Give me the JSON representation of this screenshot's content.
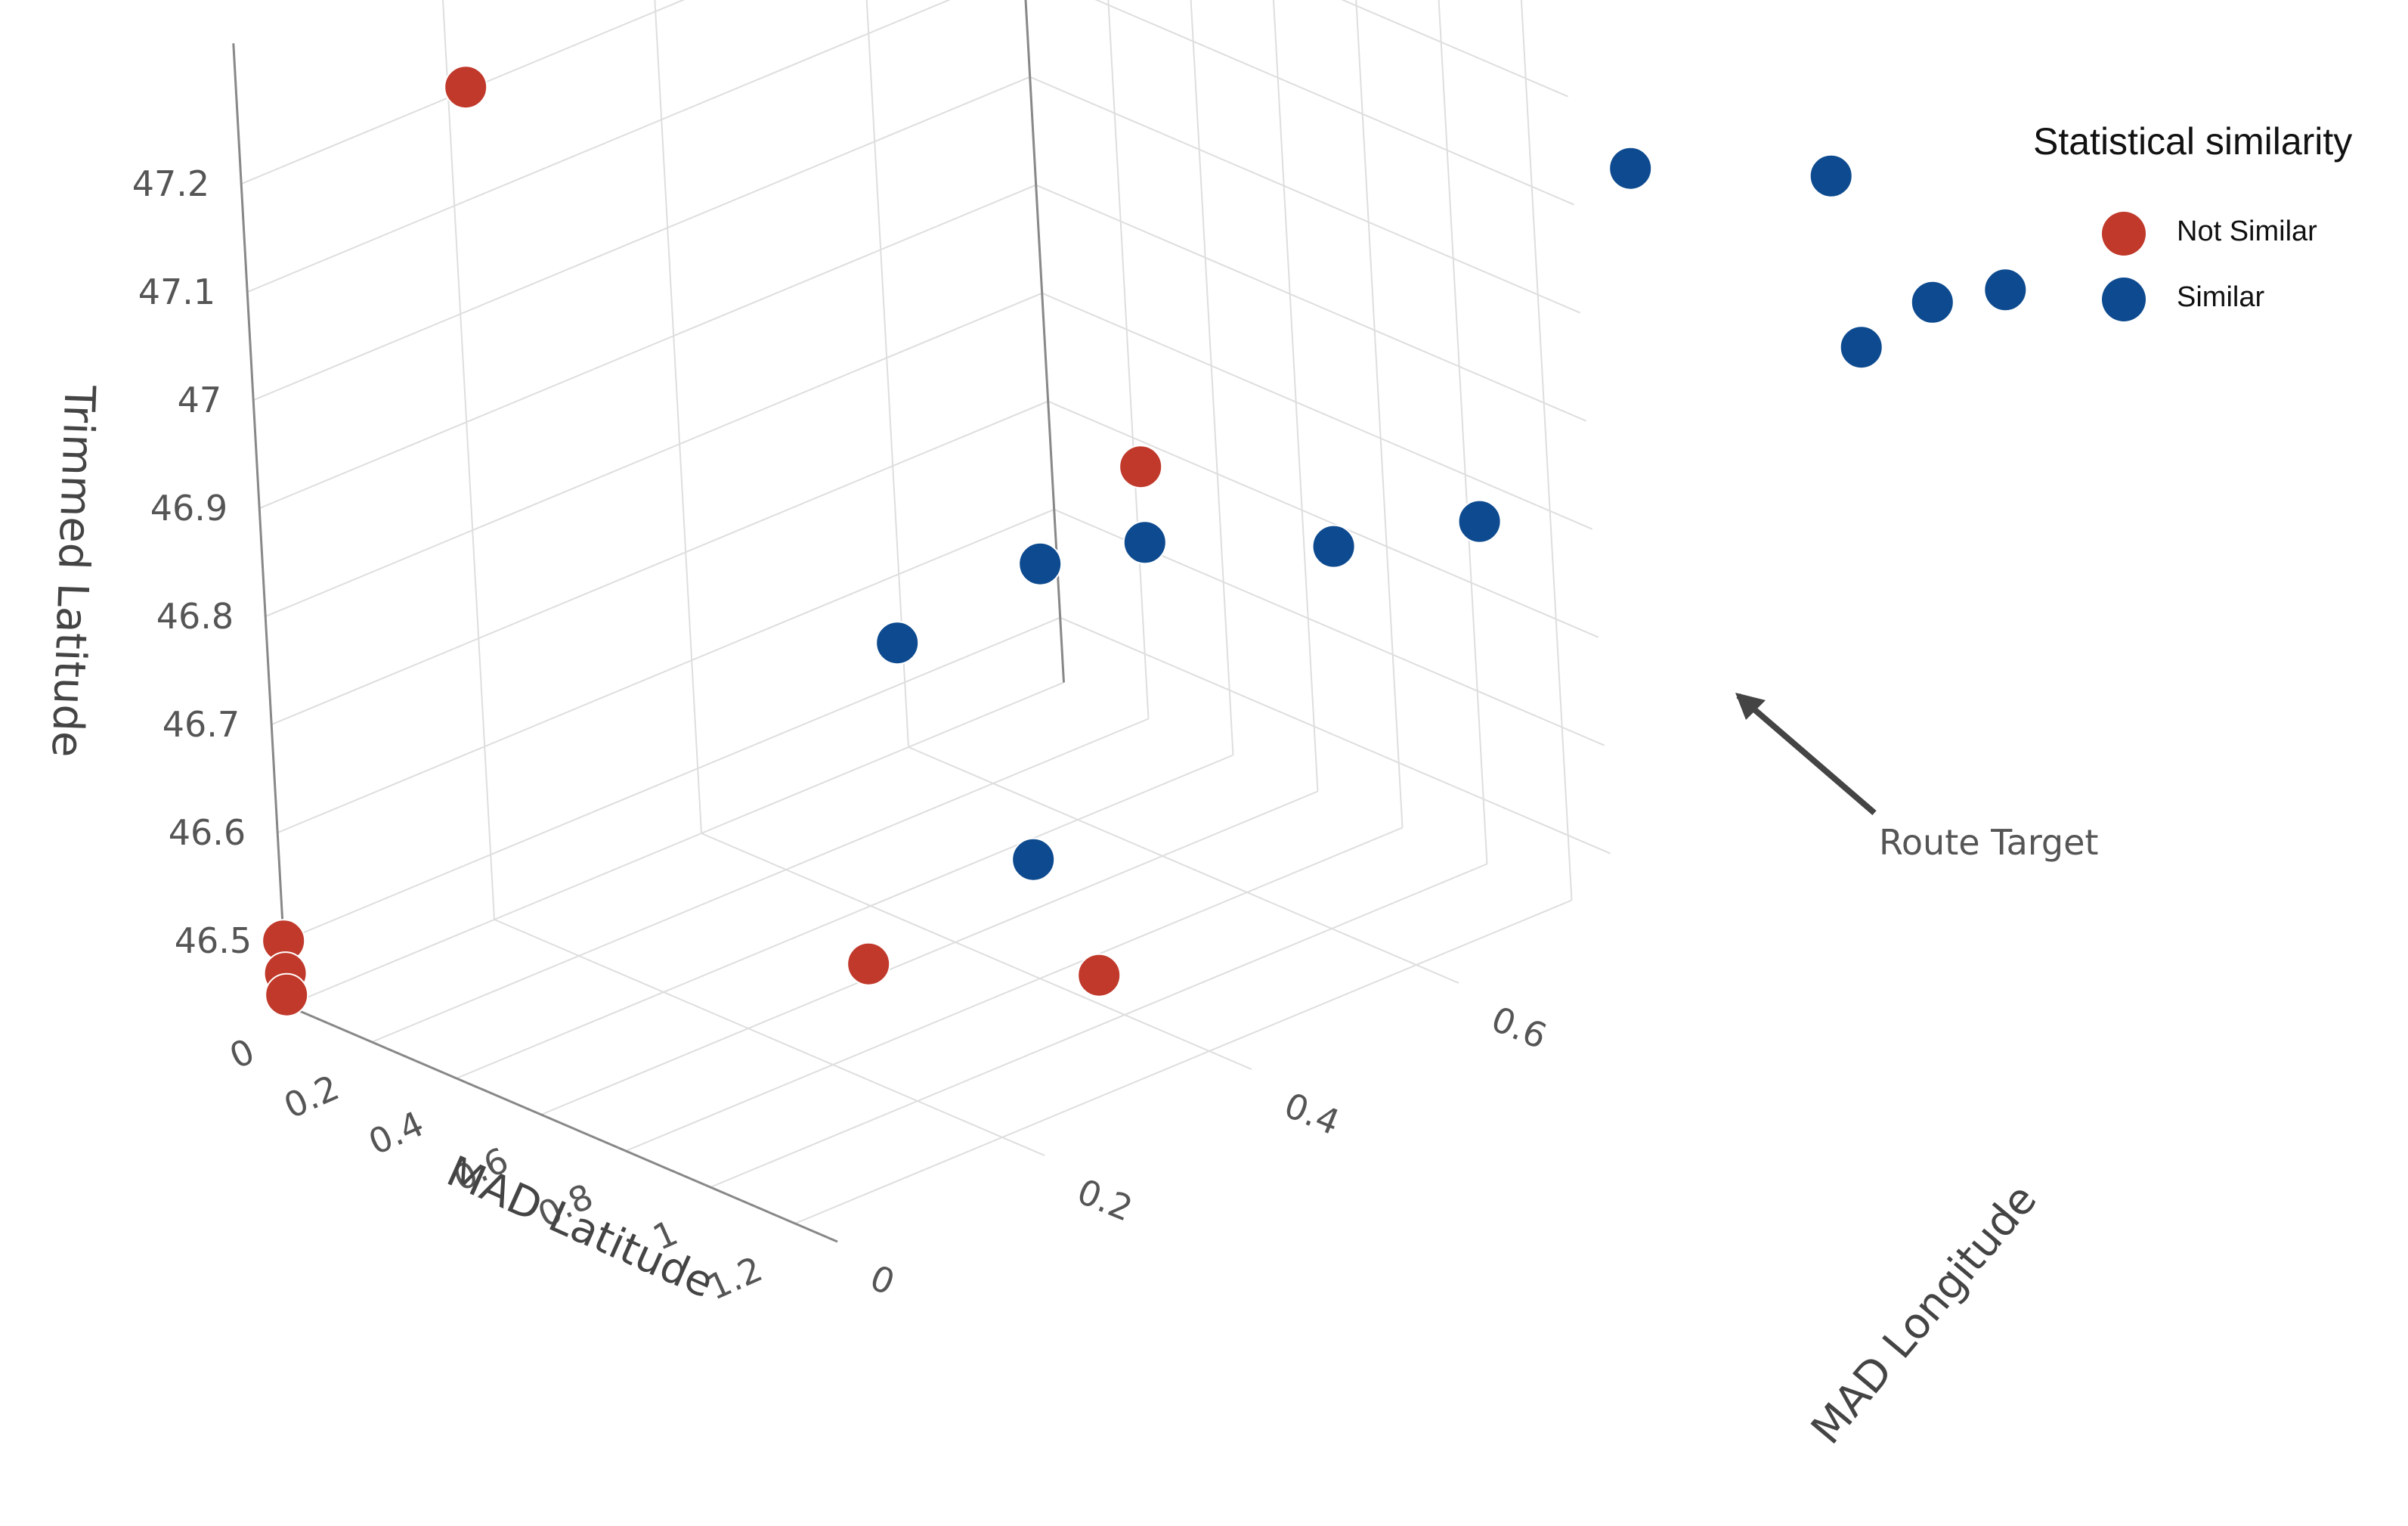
{
  "chart_data": {
    "type": "scatter",
    "projection": "3d",
    "xlabel": "MAD Latitude",
    "ylabel": "MAD Longitude",
    "zlabel": "Trimmed Latitude",
    "x_ticks": [
      "0",
      "0.2",
      "0.4",
      "0.6",
      "0.8",
      "1",
      "1.2"
    ],
    "y_ticks": [
      "0",
      "0.2",
      "0.4",
      "0.6"
    ],
    "z_ticks": [
      "46.5",
      "46.6",
      "46.7",
      "46.8",
      "46.9",
      "47",
      "47.1",
      "47.2"
    ],
    "grid": true,
    "legend": {
      "title": "Statistical similarity",
      "placement": "top-right",
      "entries": [
        {
          "label": "Not Similar",
          "color": "#c0392b"
        },
        {
          "label": "Similar",
          "color": "#0d4a8f"
        }
      ]
    },
    "annotation": {
      "text": "Route Target"
    },
    "series": [
      {
        "name": "Not Similar",
        "color": "#c0392b",
        "points": [
          {
            "x": 0.0,
            "y": 0.0,
            "z": 46.5
          },
          {
            "x": 0.0,
            "y": 0.0,
            "z": 46.47
          },
          {
            "x": 0.0,
            "y": 0.0,
            "z": 46.45
          },
          {
            "x": 0.3,
            "y": 0.1,
            "z": 47.3
          },
          {
            "x": 0.9,
            "y": 0.2,
            "z": 46.55
          },
          {
            "x": 0.6,
            "y": 0.6,
            "z": 46.8
          },
          {
            "x": 1.2,
            "y": 0.3,
            "z": 46.55
          }
        ]
      },
      {
        "name": "Similar",
        "color": "#0d4a8f",
        "points": [
          {
            "x": 0.5,
            "y": 0.4,
            "z": 46.7
          },
          {
            "x": 0.6,
            "y": 0.5,
            "z": 46.75
          },
          {
            "x": 0.6,
            "y": 0.6,
            "z": 46.73
          },
          {
            "x": 0.8,
            "y": 0.4,
            "z": 46.55
          },
          {
            "x": 0.8,
            "y": 0.7,
            "z": 46.72
          },
          {
            "x": 0.9,
            "y": 0.8,
            "z": 46.72
          },
          {
            "x": 0.8,
            "y": 1.0,
            "z": 46.95
          },
          {
            "x": 0.9,
            "y": 1.15,
            "z": 46.9
          },
          {
            "x": 0.95,
            "y": 1.15,
            "z": 46.75
          },
          {
            "x": 1.0,
            "y": 1.2,
            "z": 46.78
          },
          {
            "x": 1.05,
            "y": 1.25,
            "z": 46.78
          }
        ]
      }
    ]
  }
}
